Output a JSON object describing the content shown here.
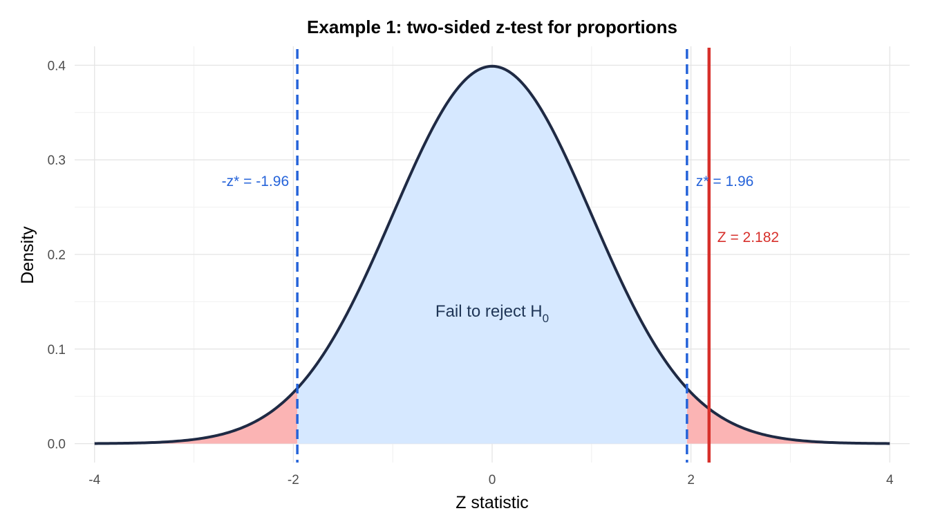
{
  "chart_data": {
    "type": "area",
    "title": "Example 1: two-sided z-test for proportions",
    "xlabel": "Z statistic",
    "ylabel": "Density",
    "xlim": [
      -4.2,
      4.2
    ],
    "ylim": [
      -0.02,
      0.42
    ],
    "x_ticks": [
      -4,
      -2,
      0,
      2,
      4
    ],
    "x_tick_labels": [
      "-4",
      "-2",
      "0",
      "2",
      "4"
    ],
    "y_ticks": [
      0.0,
      0.1,
      0.2,
      0.3,
      0.4
    ],
    "y_tick_labels": [
      "0.0",
      "0.1",
      "0.2",
      "0.3",
      "0.4"
    ],
    "grid": true,
    "curve": {
      "distribution": "standard normal",
      "x_range": [
        -4,
        4
      ],
      "color": "#1f2a44"
    },
    "regions": [
      {
        "range": [
          -4,
          -1.96
        ],
        "role": "rejection",
        "color": "#fbb4b4"
      },
      {
        "range": [
          -1.96,
          1.96
        ],
        "role": "acceptance",
        "color": "#d6e8ff"
      },
      {
        "range": [
          1.96,
          4
        ],
        "role": "rejection",
        "color": "#fbb4b4"
      }
    ],
    "critical_values": [
      {
        "x": -1.96,
        "label": "-z* = -1.96",
        "color": "#2563d9"
      },
      {
        "x": 1.96,
        "label": "z* = 1.96",
        "color": "#2563d9"
      }
    ],
    "test_statistic": {
      "x": 2.182,
      "label": "Z = 2.182",
      "color": "#d7302b"
    },
    "region_label": {
      "text": "Fail to reject H",
      "subscript": "0",
      "color": "#1f3556"
    }
  }
}
